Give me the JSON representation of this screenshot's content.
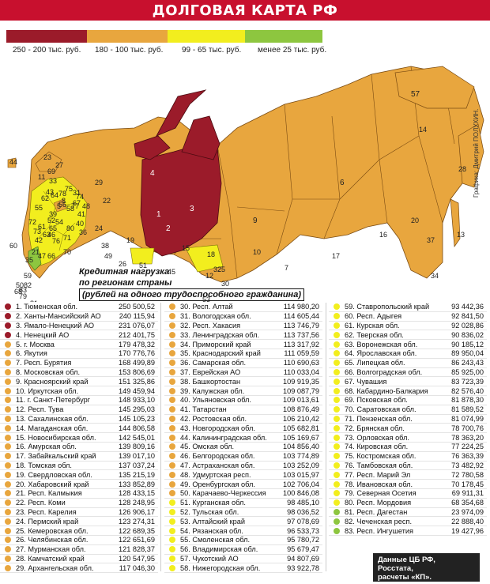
{
  "title": "ДОЛГОВАЯ КАРТА РФ",
  "legend": [
    {
      "label": "250 - 200 тыс. руб.",
      "color": "#9b1b2a"
    },
    {
      "label": "180 - 100 тыс. руб.",
      "color": "#e8a63e"
    },
    {
      "label": "99 - 65 тыс. руб.",
      "color": "#f2ee1e"
    },
    {
      "label": "менее 25 тыс. руб.",
      "color": "#8dc63f"
    }
  ],
  "colors": {
    "dark_red": "#9b1b2a",
    "orange": "#e8a63e",
    "yellow": "#f2ee1e",
    "green": "#8dc63f",
    "title_red": "#c8102e"
  },
  "map": {
    "region_numbers": [
      "1",
      "2",
      "3",
      "4",
      "5",
      "6",
      "7",
      "8",
      "9",
      "10",
      "11",
      "12",
      "13",
      "14",
      "15",
      "16",
      "17",
      "18",
      "19",
      "20",
      "21",
      "22",
      "23",
      "24",
      "25",
      "26",
      "27",
      "28",
      "29",
      "30",
      "31",
      "32",
      "33",
      "34",
      "35",
      "36",
      "37",
      "38",
      "39",
      "40",
      "41",
      "42",
      "43",
      "44",
      "45",
      "46",
      "47",
      "48",
      "49",
      "50",
      "51",
      "52",
      "53",
      "54",
      "55",
      "56",
      "57",
      "58",
      "59",
      "60",
      "61",
      "62",
      "63",
      "64",
      "65",
      "66",
      "67",
      "68",
      "69",
      "70",
      "71",
      "72",
      "73",
      "74",
      "75",
      "76",
      "77",
      "78",
      "79",
      "80",
      "81",
      "82",
      "83"
    ]
  },
  "caption": {
    "line1": "Кредитная нагрузка",
    "line2": "по регионам страны",
    "line3": "(рублей на одного трудоспособного гражданина)"
  },
  "credit": "Графика: Дмитрий ПОЛУХИН.",
  "source": {
    "line1": "Данные ЦБ РФ,",
    "line2": "Росстата,",
    "line3": "расчеты «КП»."
  },
  "rows": [
    {
      "n": "1. Тюменская обл.",
      "v": "250 500,52",
      "c": "dark_red"
    },
    {
      "n": "2. Ханты-Мансийский АО",
      "v": "240 115,94",
      "c": "dark_red"
    },
    {
      "n": "3. Ямало-Ненецкий АО",
      "v": "231 076,07",
      "c": "dark_red"
    },
    {
      "n": "4. Ненецкий АО",
      "v": "212 401,75",
      "c": "dark_red"
    },
    {
      "n": "5. г. Москва",
      "v": "179 478,32",
      "c": "orange"
    },
    {
      "n": "6. Якутия",
      "v": "170 776,76",
      "c": "orange"
    },
    {
      "n": "7. Респ. Бурятия",
      "v": "168 499,89",
      "c": "orange"
    },
    {
      "n": "8. Московская обл.",
      "v": "153 806,69",
      "c": "orange"
    },
    {
      "n": "9. Красноярский край",
      "v": "151 325,86",
      "c": "orange"
    },
    {
      "n": "10. Иркутская обл.",
      "v": "149 459,94",
      "c": "orange"
    },
    {
      "n": "11. г. Санкт-Петербург",
      "v": "148 933,10",
      "c": "orange"
    },
    {
      "n": "12. Респ. Тува",
      "v": "145 295,03",
      "c": "orange"
    },
    {
      "n": "13. Сахалинская обл.",
      "v": "145 105,23",
      "c": "orange"
    },
    {
      "n": "14. Магаданская обл.",
      "v": "144 806,58",
      "c": "orange"
    },
    {
      "n": "15. Новосибирская обл.",
      "v": "142 545,01",
      "c": "orange"
    },
    {
      "n": "16. Амурская обл.",
      "v": "139 809,16",
      "c": "orange"
    },
    {
      "n": "17. Забайкальский край",
      "v": "139 017,10",
      "c": "orange"
    },
    {
      "n": "18. Томская обл.",
      "v": "137 037,24",
      "c": "orange"
    },
    {
      "n": "19. Свердловская обл.",
      "v": "135 215,19",
      "c": "orange"
    },
    {
      "n": "20. Хабаровский край",
      "v": "133 852,89",
      "c": "orange"
    },
    {
      "n": "21. Респ. Калмыкия",
      "v": "128 433,15",
      "c": "orange"
    },
    {
      "n": "22. Респ. Коми",
      "v": "128 248,95",
      "c": "orange"
    },
    {
      "n": "23. Респ. Карелия",
      "v": "126 906,17",
      "c": "orange"
    },
    {
      "n": "24. Пермский край",
      "v": "123 274,31",
      "c": "orange"
    },
    {
      "n": "25. Кемеровская обл.",
      "v": "122 689,35",
      "c": "orange"
    },
    {
      "n": "26. Челябинская обл.",
      "v": "122 651,69",
      "c": "orange"
    },
    {
      "n": "27. Мурманская обл.",
      "v": "121 828,37",
      "c": "orange"
    },
    {
      "n": "28. Камчатский край",
      "v": "120 547,95",
      "c": "orange"
    },
    {
      "n": "29. Архангельская обл.",
      "v": "117 046,30",
      "c": "orange"
    },
    {
      "n": "30. Респ. Алтай",
      "v": "114 980,20",
      "c": "orange"
    },
    {
      "n": "31. Вологодская обл.",
      "v": "114 605,44",
      "c": "orange"
    },
    {
      "n": "32. Респ. Хакасия",
      "v": "113 746,79",
      "c": "orange"
    },
    {
      "n": "33. Ленинградская обл.",
      "v": "113 737,56",
      "c": "orange"
    },
    {
      "n": "34. Приморский край",
      "v": "113 317,92",
      "c": "orange"
    },
    {
      "n": "35. Краснодарский край",
      "v": "111 059,59",
      "c": "orange"
    },
    {
      "n": "36. Самарская обл.",
      "v": "110 690,63",
      "c": "orange"
    },
    {
      "n": "37. Еврейская АО",
      "v": "110 033,04",
      "c": "orange"
    },
    {
      "n": "38. Башкортостан",
      "v": "109 919,35",
      "c": "orange"
    },
    {
      "n": "39. Калужская обл.",
      "v": "109 087,79",
      "c": "orange"
    },
    {
      "n": "40. Ульяновская обл.",
      "v": "109 013,61",
      "c": "orange"
    },
    {
      "n": "41. Татарстан",
      "v": "108 876,49",
      "c": "orange"
    },
    {
      "n": "42. Ростовская обл.",
      "v": "106 210,42",
      "c": "orange"
    },
    {
      "n": "43. Новгородская обл.",
      "v": "105 682,81",
      "c": "orange"
    },
    {
      "n": "44. Калининградская обл.",
      "v": "105 169,67",
      "c": "orange"
    },
    {
      "n": "45. Омская обл.",
      "v": "104 856,40",
      "c": "orange"
    },
    {
      "n": "46. Белгородская обл.",
      "v": "103 774,89",
      "c": "orange"
    },
    {
      "n": "47. Астраханская обл.",
      "v": "103 252,09",
      "c": "orange"
    },
    {
      "n": "48. Удмуртская респ.",
      "v": "103 015,97",
      "c": "orange"
    },
    {
      "n": "49. Оренбургская обл.",
      "v": "102 706,04",
      "c": "orange"
    },
    {
      "n": "50. Карачаево-Черкессия",
      "v": "100 846,08",
      "c": "orange"
    },
    {
      "n": "51. Курганская обл.",
      "v": "98 485,10",
      "c": "yellow"
    },
    {
      "n": "52. Тульская обл.",
      "v": "98 036,52",
      "c": "yellow"
    },
    {
      "n": "53. Алтайский край",
      "v": "97 078,69",
      "c": "yellow"
    },
    {
      "n": "54. Рязанская обл.",
      "v": "96 533,73",
      "c": "yellow"
    },
    {
      "n": "55. Смоленская обл.",
      "v": "95 780,72",
      "c": "yellow"
    },
    {
      "n": "56. Владимирская обл.",
      "v": "95 679,47",
      "c": "yellow"
    },
    {
      "n": "57. Чукотский АО",
      "v": "94 807,69",
      "c": "yellow"
    },
    {
      "n": "58. Нижегородская обл.",
      "v": "93 922,78",
      "c": "yellow"
    },
    {
      "n": "59. Ставропольский край",
      "v": "93 442,36",
      "c": "yellow"
    },
    {
      "n": "60. Респ. Адыгея",
      "v": "92 841,50",
      "c": "yellow"
    },
    {
      "n": "61. Курская обл.",
      "v": "92 028,86",
      "c": "yellow"
    },
    {
      "n": "62. Тверская обл.",
      "v": "90 836,02",
      "c": "yellow"
    },
    {
      "n": "63. Воронежская обл.",
      "v": "90 185,12",
      "c": "yellow"
    },
    {
      "n": "64. Ярославская обл.",
      "v": "89 950,04",
      "c": "yellow"
    },
    {
      "n": "65. Липецкая обл.",
      "v": "86 243,43",
      "c": "yellow"
    },
    {
      "n": "66. Волгоградская обл.",
      "v": "85 925,00",
      "c": "yellow"
    },
    {
      "n": "67. Чувашия",
      "v": "83 723,39",
      "c": "yellow"
    },
    {
      "n": "68. Кабардино-Балкария",
      "v": "82 576,40",
      "c": "yellow"
    },
    {
      "n": "69. Псковская обл.",
      "v": "81 878,30",
      "c": "yellow"
    },
    {
      "n": "70. Саратовская обл.",
      "v": "81 589,52",
      "c": "yellow"
    },
    {
      "n": "71. Пензенская обл.",
      "v": "81 074,99",
      "c": "yellow"
    },
    {
      "n": "72. Брянская обл.",
      "v": "78 700,76",
      "c": "yellow"
    },
    {
      "n": "73. Орловская обл.",
      "v": "78 363,20",
      "c": "yellow"
    },
    {
      "n": "74. Кировская обл.",
      "v": "77 224,25",
      "c": "yellow"
    },
    {
      "n": "75. Костромская обл.",
      "v": "76 363,39",
      "c": "yellow"
    },
    {
      "n": "76. Тамбовская обл.",
      "v": "73 482,92",
      "c": "yellow"
    },
    {
      "n": "77. Респ. Марий Эл",
      "v": "72 780,58",
      "c": "yellow"
    },
    {
      "n": "78. Ивановская обл.",
      "v": "70 178,45",
      "c": "yellow"
    },
    {
      "n": "79. Северная Осетия",
      "v": "69 911,31",
      "c": "yellow"
    },
    {
      "n": "80. Респ. Мордовия",
      "v": "68 354,68",
      "c": "yellow"
    },
    {
      "n": "81. Респ. Дагестан",
      "v": "23 974,09",
      "c": "green"
    },
    {
      "n": "82. Чеченская респ.",
      "v": "22 888,40",
      "c": "green"
    },
    {
      "n": "83. Респ. Ингушетия",
      "v": "19 427,96",
      "c": "green"
    }
  ]
}
